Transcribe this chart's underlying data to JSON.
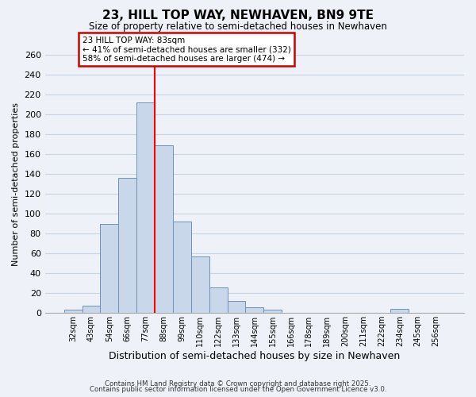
{
  "title": "23, HILL TOP WAY, NEWHAVEN, BN9 9TE",
  "subtitle": "Size of property relative to semi-detached houses in Newhaven",
  "xlabel": "Distribution of semi-detached houses by size in Newhaven",
  "ylabel": "Number of semi-detached properties",
  "bar_labels": [
    "32sqm",
    "43sqm",
    "54sqm",
    "66sqm",
    "77sqm",
    "88sqm",
    "99sqm",
    "110sqm",
    "122sqm",
    "133sqm",
    "144sqm",
    "155sqm",
    "166sqm",
    "178sqm",
    "189sqm",
    "200sqm",
    "211sqm",
    "222sqm",
    "234sqm",
    "245sqm",
    "256sqm"
  ],
  "bar_values": [
    3,
    7,
    90,
    136,
    212,
    169,
    92,
    57,
    26,
    12,
    6,
    3,
    0,
    0,
    0,
    0,
    0,
    0,
    4,
    0,
    0
  ],
  "bar_color": "#c8d8ea",
  "bar_edge_color": "#7090b8",
  "grid_color": "#c8d4e4",
  "bg_color": "#eef2f8",
  "vline_color": "red",
  "vline_pos": 4.5,
  "annotation_title": "23 HILL TOP WAY: 83sqm",
  "annotation_line1": "← 41% of semi-detached houses are smaller (332)",
  "annotation_line2": "58% of semi-detached houses are larger (474) →",
  "annotation_box_color": "white",
  "annotation_box_edge": "#cc0000",
  "ylim": [
    0,
    260
  ],
  "yticks": [
    0,
    20,
    40,
    60,
    80,
    100,
    120,
    140,
    160,
    180,
    200,
    220,
    240,
    260
  ],
  "footnote1": "Contains HM Land Registry data © Crown copyright and database right 2025.",
  "footnote2": "Contains public sector information licensed under the Open Government Licence v3.0."
}
